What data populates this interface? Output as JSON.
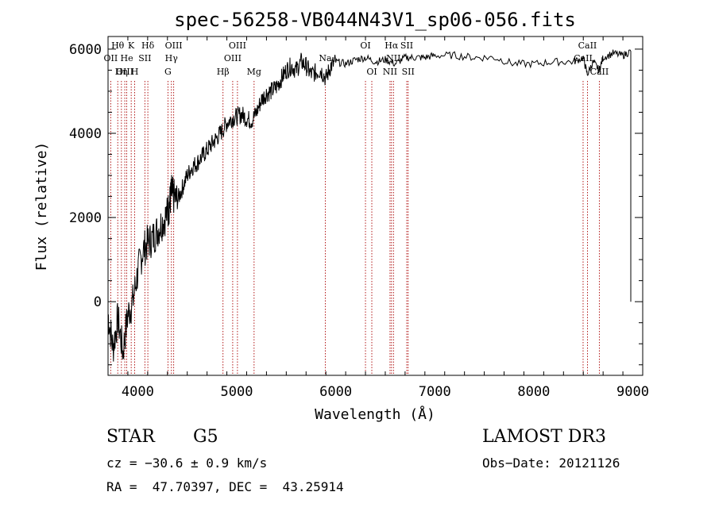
{
  "chart_data": {
    "type": "line",
    "title": "spec-56258-VB044N43V1_sp06-056.fits",
    "xlabel": "Wavelength (Å)",
    "ylabel": "Flux (relative)",
    "xlim": [
      3700,
      9100
    ],
    "ylim": [
      -1750,
      6300
    ],
    "xticks": [
      4000,
      5000,
      6000,
      7000,
      8000,
      9000
    ],
    "yticks": [
      0,
      2000,
      4000,
      6000
    ],
    "series": [
      {
        "name": "flux",
        "x": [
          3700,
          3750,
          3800,
          3850,
          3900,
          3950,
          4000,
          4050,
          4100,
          4150,
          4200,
          4250,
          4300,
          4320,
          4340,
          4360,
          4400,
          4450,
          4500,
          4550,
          4600,
          4650,
          4700,
          4750,
          4800,
          4850,
          4900,
          4950,
          5000,
          5050,
          5100,
          5150,
          5200,
          5250,
          5300,
          5350,
          5400,
          5450,
          5500,
          5550,
          5600,
          5650,
          5700,
          5750,
          5800,
          5850,
          5900,
          5950,
          6000,
          6100,
          6200,
          6300,
          6400,
          6500,
          6600,
          6700,
          6800,
          6900,
          7000,
          7200,
          7400,
          7600,
          7800,
          8000,
          8200,
          8400,
          8500,
          8540,
          8600,
          8660,
          8700,
          8800,
          8900,
          8980
        ],
        "y": [
          -300,
          -1100,
          -400,
          -1200,
          -300,
          0,
          700,
          1200,
          1400,
          1500,
          1700,
          1900,
          2100,
          2300,
          2600,
          2500,
          2400,
          2700,
          3000,
          3200,
          3300,
          3450,
          3600,
          3750,
          3900,
          4050,
          4250,
          4350,
          4400,
          4450,
          4350,
          4300,
          4500,
          4800,
          4950,
          5000,
          5100,
          5300,
          5500,
          5600,
          5500,
          5700,
          5600,
          5400,
          5450,
          5500,
          5300,
          5600,
          5700,
          5650,
          5750,
          5800,
          5700,
          5750,
          5650,
          5800,
          5800,
          5800,
          5850,
          5850,
          5800,
          5800,
          5650,
          5650,
          5700,
          5700,
          5800,
          5400,
          5700,
          5500,
          5800,
          5900,
          5850,
          5950
        ]
      }
    ],
    "spectral_lines": [
      {
        "label": "Hθ",
        "wavelength": 3798,
        "row": 1
      },
      {
        "label": "OII",
        "wavelength": 3727,
        "row": 2
      },
      {
        "label": "OIII",
        "wavelength": 3869,
        "row": 3
      },
      {
        "label": "K",
        "wavelength": 3934,
        "row": 1
      },
      {
        "label": "H",
        "wavelength": 3969,
        "row": 3
      },
      {
        "label": "He",
        "wavelength": 3889,
        "row": 2
      },
      {
        "label": "Hη",
        "wavelength": 3835,
        "row": 3
      },
      {
        "label": "SII",
        "wavelength": 4072,
        "row": 2
      },
      {
        "label": "Hδ",
        "wavelength": 4102,
        "row": 1
      },
      {
        "label": "OIII",
        "wavelength": 4363,
        "row": 1
      },
      {
        "label": "Hγ",
        "wavelength": 4340,
        "row": 2
      },
      {
        "label": "G",
        "wavelength": 4305,
        "row": 3
      },
      {
        "label": "Hβ",
        "wavelength": 4861,
        "row": 3
      },
      {
        "label": "OIII",
        "wavelength": 4959,
        "row": 2
      },
      {
        "label": "OIII",
        "wavelength": 5007,
        "row": 1
      },
      {
        "label": "Mg",
        "wavelength": 5175,
        "row": 3
      },
      {
        "label": "Na",
        "wavelength": 5894,
        "row": 2
      },
      {
        "label": "OI",
        "wavelength": 6300,
        "row": 1
      },
      {
        "label": "OI",
        "wavelength": 6364,
        "row": 3
      },
      {
        "label": "Hα",
        "wavelength": 6563,
        "row": 1
      },
      {
        "label": "NII",
        "wavelength": 6548,
        "row": 3
      },
      {
        "label": "NII",
        "wavelength": 6583,
        "row": 2
      },
      {
        "label": "SII",
        "wavelength": 6717,
        "row": 1
      },
      {
        "label": "SII",
        "wavelength": 6731,
        "row": 3
      },
      {
        "label": "CaII",
        "wavelength": 8542,
        "row": 1
      },
      {
        "label": "CaII",
        "wavelength": 8498,
        "row": 2
      },
      {
        "label": "CaII",
        "wavelength": 8662,
        "row": 3
      }
    ]
  },
  "info": {
    "object_class": "STAR",
    "subclass": "G5",
    "survey": "LAMOST DR3",
    "cz": "cz = −30.6 ± 0.9 km/s",
    "obs_date": "Obs−Date: 20121126",
    "radec": "RA =  47.70397, DEC =  43.25914"
  }
}
